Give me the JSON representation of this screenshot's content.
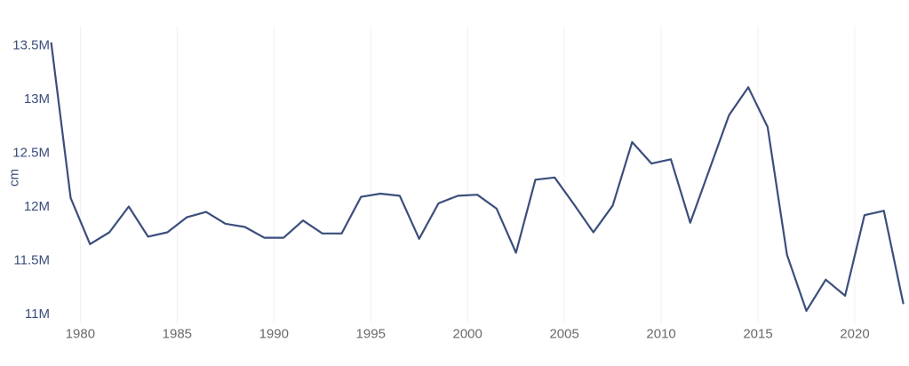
{
  "chart_data": {
    "type": "line",
    "title": "",
    "xlabel": "",
    "ylabel": "cm",
    "legend": "none",
    "grid": "vertical-only",
    "xlim": [
      1978,
      2022
    ],
    "ylim": [
      10.9,
      13.6
    ],
    "x": [
      1978,
      1979,
      1980,
      1981,
      1982,
      1983,
      1984,
      1985,
      1986,
      1987,
      1988,
      1989,
      1990,
      1991,
      1992,
      1993,
      1994,
      1995,
      1996,
      1997,
      1998,
      1999,
      2000,
      2001,
      2002,
      2003,
      2004,
      2005,
      2006,
      2007,
      2008,
      2009,
      2010,
      2011,
      2012,
      2013,
      2014,
      2015,
      2016,
      2017,
      2018,
      2019,
      2020,
      2021,
      2022
    ],
    "series": [
      {
        "name": "value",
        "values": [
          13.52,
          12.08,
          11.65,
          11.76,
          12.0,
          11.72,
          11.76,
          11.9,
          11.95,
          11.84,
          11.81,
          11.71,
          11.71,
          11.87,
          11.75,
          11.75,
          12.09,
          12.12,
          12.1,
          11.7,
          12.03,
          12.1,
          12.11,
          11.98,
          11.57,
          12.25,
          12.27,
          12.02,
          11.76,
          12.01,
          12.6,
          12.4,
          12.44,
          11.85,
          12.35,
          12.85,
          13.11,
          12.74,
          11.55,
          11.03,
          11.32,
          11.17,
          11.92,
          11.96,
          11.1
        ]
      }
    ],
    "y_ticks": [
      {
        "v": 13.5,
        "label": "13.5M"
      },
      {
        "v": 13.0,
        "label": "13M"
      },
      {
        "v": 12.5,
        "label": "12.5M"
      },
      {
        "v": 12.0,
        "label": "12M"
      },
      {
        "v": 11.5,
        "label": "11.5M"
      },
      {
        "v": 11.0,
        "label": "11M"
      }
    ],
    "x_ticks": [
      {
        "v": 1980,
        "label": "1980"
      },
      {
        "v": 1985,
        "label": "1985"
      },
      {
        "v": 1990,
        "label": "1990"
      },
      {
        "v": 1995,
        "label": "1995"
      },
      {
        "v": 2000,
        "label": "2000"
      },
      {
        "v": 2005,
        "label": "2005"
      },
      {
        "v": 2010,
        "label": "2010"
      },
      {
        "v": 2015,
        "label": "2015"
      },
      {
        "v": 2020,
        "label": "2020"
      }
    ],
    "colors": {
      "line": "#3b4e7c",
      "y_tick_text": "#3b4e7c",
      "x_tick_text": "#6a6a6a",
      "gridline": "#f0f0f0",
      "background": "#ffffff"
    }
  }
}
